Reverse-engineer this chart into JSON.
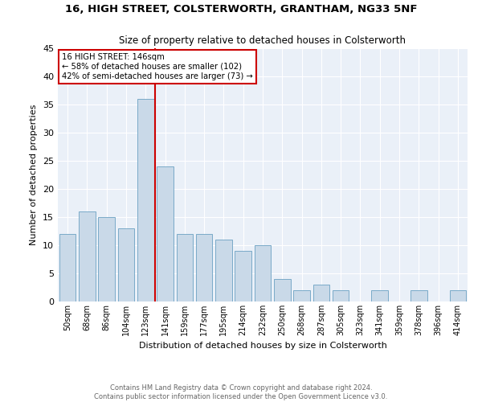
{
  "title1": "16, HIGH STREET, COLSTERWORTH, GRANTHAM, NG33 5NF",
  "title2": "Size of property relative to detached houses in Colsterworth",
  "xlabel": "Distribution of detached houses by size in Colsterworth",
  "ylabel": "Number of detached properties",
  "footnote1": "Contains HM Land Registry data © Crown copyright and database right 2024.",
  "footnote2": "Contains public sector information licensed under the Open Government Licence v3.0.",
  "categories": [
    "50sqm",
    "68sqm",
    "86sqm",
    "104sqm",
    "123sqm",
    "141sqm",
    "159sqm",
    "177sqm",
    "195sqm",
    "214sqm",
    "232sqm",
    "250sqm",
    "268sqm",
    "287sqm",
    "305sqm",
    "323sqm",
    "341sqm",
    "359sqm",
    "378sqm",
    "396sqm",
    "414sqm"
  ],
  "values": [
    12,
    16,
    15,
    13,
    36,
    24,
    12,
    12,
    11,
    9,
    10,
    4,
    2,
    3,
    2,
    0,
    2,
    0,
    2,
    0,
    2
  ],
  "bar_color": "#c9d9e8",
  "bar_edge_color": "#7aaac8",
  "annotation_title": "16 HIGH STREET: 146sqm",
  "annotation_line1": "← 58% of detached houses are smaller (102)",
  "annotation_line2": "42% of semi-detached houses are larger (73) →",
  "annotation_box_color": "#cc0000",
  "ylim": [
    0,
    45
  ],
  "yticks": [
    0,
    5,
    10,
    15,
    20,
    25,
    30,
    35,
    40,
    45
  ],
  "background_color": "#eaf0f8",
  "grid_color": "#ffffff"
}
